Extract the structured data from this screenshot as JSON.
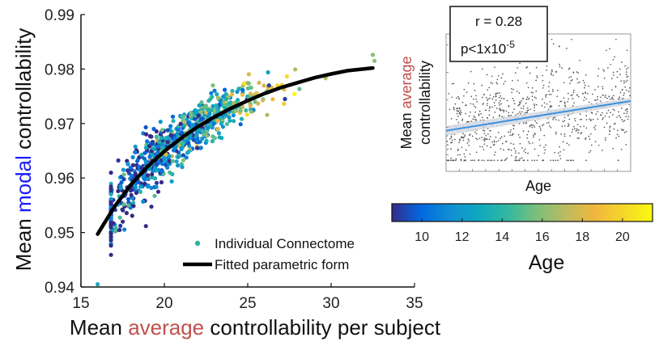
{
  "colors": {
    "modal_word": "#1a1aff",
    "average_word": "#c0504d",
    "fit_line": "#000000",
    "legend_marker": "#2bb5a0",
    "inset_line": "#3a8fdd",
    "inset_band": "#d5dbe3",
    "inset_points": "#555555"
  },
  "chart_data": [
    {
      "type": "scatter",
      "title": "",
      "xlabel_parts": [
        "Mean ",
        "average",
        " controllability per subject"
      ],
      "ylabel_parts": [
        "Mean ",
        "modal",
        " controllability"
      ],
      "xlim": [
        15,
        35
      ],
      "ylim": [
        0.94,
        0.99
      ],
      "xticks": [
        15,
        20,
        25,
        30,
        35
      ],
      "yticks": [
        0.94,
        0.95,
        0.96,
        0.97,
        0.98,
        0.99
      ],
      "xtick_labels": [
        "15",
        "20",
        "25",
        "30",
        "35"
      ],
      "ytick_labels": [
        "0.94",
        "0.95",
        "0.96",
        "0.97",
        "0.98",
        "0.99"
      ],
      "legend": {
        "placement": "bottom-right",
        "entries": [
          "Individual Connectome",
          "Fitted parametric form"
        ]
      },
      "series": [
        {
          "name": "Individual Connectome",
          "kind": "points",
          "color_by": "Age",
          "n_points": 880,
          "x_range": [
            16.0,
            32.5
          ],
          "trend": "concave increasing cloud following the fitted curve",
          "outliers": [
            [
              16.0,
              0.9405
            ],
            [
              32.5,
              0.9826
            ],
            [
              32.6,
              0.9815
            ]
          ]
        },
        {
          "name": "Fitted parametric form",
          "kind": "line",
          "x": [
            16.0,
            17.0,
            18.0,
            19.0,
            20.0,
            21.0,
            22.0,
            23.0,
            24.0,
            25.0,
            26.0,
            27.0,
            28.0,
            29.0,
            30.0,
            31.0,
            32.5
          ],
          "y": [
            0.9497,
            0.9547,
            0.9588,
            0.9621,
            0.9649,
            0.9673,
            0.9694,
            0.9712,
            0.9728,
            0.9742,
            0.9755,
            0.9766,
            0.9775,
            0.9784,
            0.9791,
            0.9797,
            0.9802
          ]
        }
      ]
    },
    {
      "type": "scatter",
      "title": "",
      "xlabel": "Age",
      "ylabel_parts": [
        "Mean ",
        "average",
        "controllability"
      ],
      "annotation": {
        "r_text": "r = 0.28",
        "p_text": "p<1x10",
        "p_exponent": "-5"
      },
      "fit": {
        "x": [
          8,
          22
        ],
        "y": [
          0.22,
          0.49
        ],
        "ci_halfwidth": [
          0.045,
          0.03
        ]
      },
      "n_points": 880,
      "xlim": [
        8,
        22
      ],
      "ylim": [
        -0.15,
        1.1
      ]
    },
    {
      "type": "colorbar",
      "title": "Age",
      "range": [
        8.5,
        21.5
      ],
      "ticks": [
        10,
        12,
        14,
        16,
        18,
        20
      ],
      "tick_labels": [
        "10",
        "12",
        "14",
        "16",
        "18",
        "20"
      ],
      "colormap": [
        "#352a87",
        "#0268e1",
        "#108ed2",
        "#0fa8bf",
        "#33b8a1",
        "#7cbf7b",
        "#bbbc5f",
        "#f0b63e",
        "#f5d72a",
        "#f9fb0e"
      ]
    }
  ]
}
